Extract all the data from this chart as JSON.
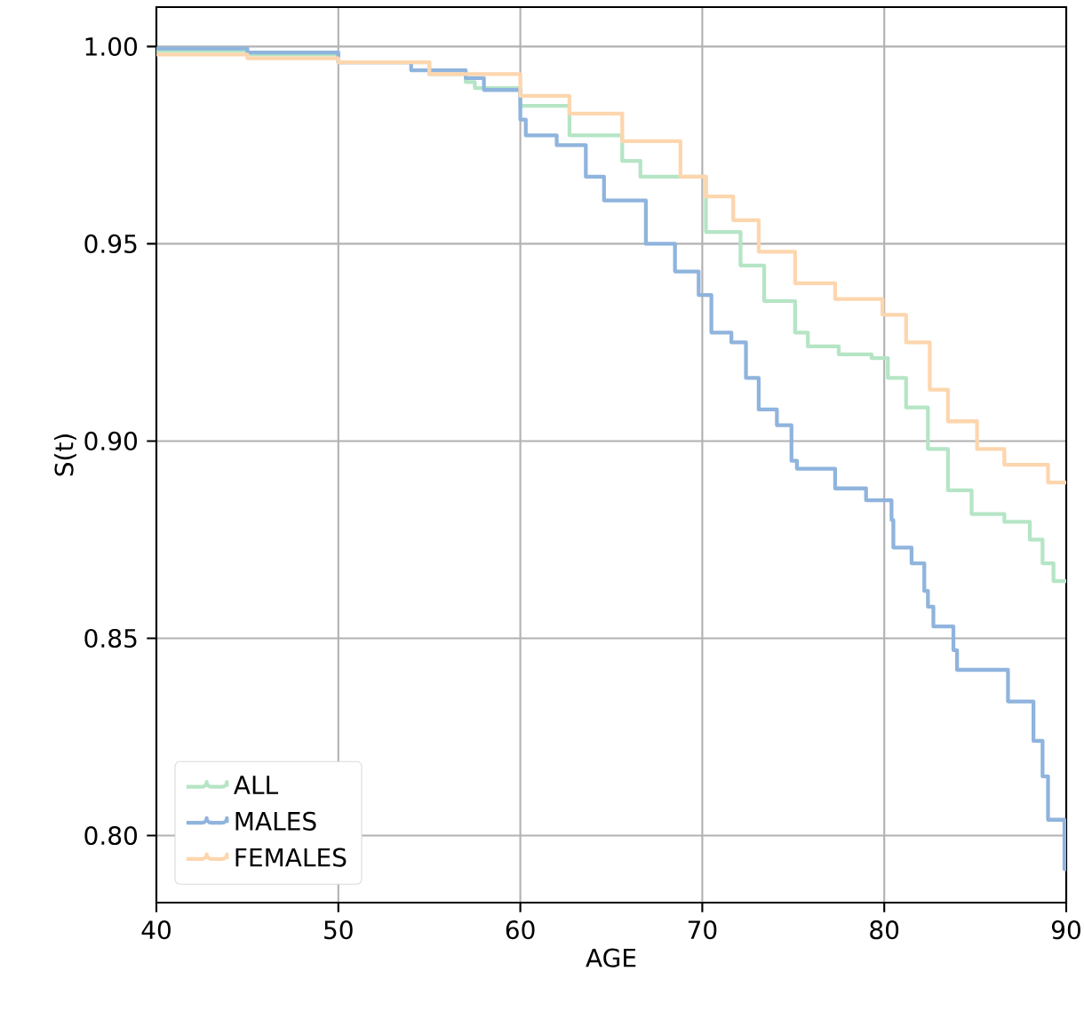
{
  "chart_data": {
    "type": "step",
    "xlabel": "AGE",
    "ylabel": "S(t)",
    "xlim": [
      40,
      90
    ],
    "ylim": [
      0.783,
      1.01
    ],
    "xticks": [
      40,
      50,
      60,
      70,
      80,
      90
    ],
    "yticks": [
      {
        "value": 0.8,
        "label": "0.80"
      },
      {
        "value": 0.85,
        "label": "0.85"
      },
      {
        "value": 0.9,
        "label": "0.90"
      },
      {
        "value": 0.95,
        "label": "0.95"
      },
      {
        "value": 1.0,
        "label": "1.00"
      }
    ],
    "grid": true,
    "legend": "bottom left",
    "series": [
      {
        "name": "ALL",
        "color": "#b5e5c5",
        "x": [
          40,
          45,
          50,
          55,
          57,
          57.5,
          60,
          62.7,
          65.6,
          66.6,
          70.2,
          72.1,
          73.4,
          75.1,
          75.8,
          77.5,
          79.3,
          80.2,
          81.2,
          82.4,
          83.5,
          84.8,
          86.6,
          88.0,
          88.7,
          89.3,
          90
        ],
        "values": [
          0.999,
          0.998,
          0.996,
          0.993,
          0.991,
          0.9895,
          0.985,
          0.9775,
          0.971,
          0.967,
          0.953,
          0.9445,
          0.9355,
          0.9275,
          0.924,
          0.922,
          0.921,
          0.916,
          0.9085,
          0.898,
          0.8875,
          0.8815,
          0.8795,
          0.875,
          0.869,
          0.8645,
          0.8645
        ]
      },
      {
        "name": "MALES",
        "color": "#8fb4dd",
        "x": [
          40,
          45,
          50,
          54,
          57,
          58,
          60,
          60.3,
          62,
          63.6,
          64.6,
          66.9,
          68.5,
          69.8,
          70.5,
          71.6,
          72.4,
          73.1,
          74.1,
          74.9,
          75.2,
          77.3,
          79.0,
          80.4,
          80.5,
          81.5,
          82.2,
          82.4,
          82.7,
          83.8,
          84.0,
          86.8,
          88.2,
          88.7,
          89.0,
          89.9,
          90
        ],
        "values": [
          0.9995,
          0.9985,
          0.996,
          0.994,
          0.992,
          0.989,
          0.9815,
          0.9775,
          0.975,
          0.967,
          0.961,
          0.95,
          0.943,
          0.937,
          0.9275,
          0.925,
          0.916,
          0.908,
          0.904,
          0.895,
          0.893,
          0.888,
          0.885,
          0.88,
          0.873,
          0.869,
          0.862,
          0.858,
          0.853,
          0.847,
          0.842,
          0.834,
          0.824,
          0.815,
          0.804,
          0.7915,
          0.7915
        ]
      },
      {
        "name": "FEMALES",
        "color": "#fdd6ae",
        "x": [
          40,
          45,
          50,
          55,
          60,
          62.7,
          65.6,
          68.8,
          70.2,
          71.7,
          73.1,
          75.1,
          77.3,
          79.9,
          81.2,
          82.5,
          83.5,
          85.1,
          86.6,
          89.0,
          90
        ],
        "values": [
          0.998,
          0.997,
          0.996,
          0.993,
          0.9875,
          0.983,
          0.976,
          0.967,
          0.962,
          0.956,
          0.948,
          0.94,
          0.936,
          0.932,
          0.925,
          0.913,
          0.905,
          0.898,
          0.894,
          0.8895,
          0.8895
        ]
      }
    ]
  }
}
